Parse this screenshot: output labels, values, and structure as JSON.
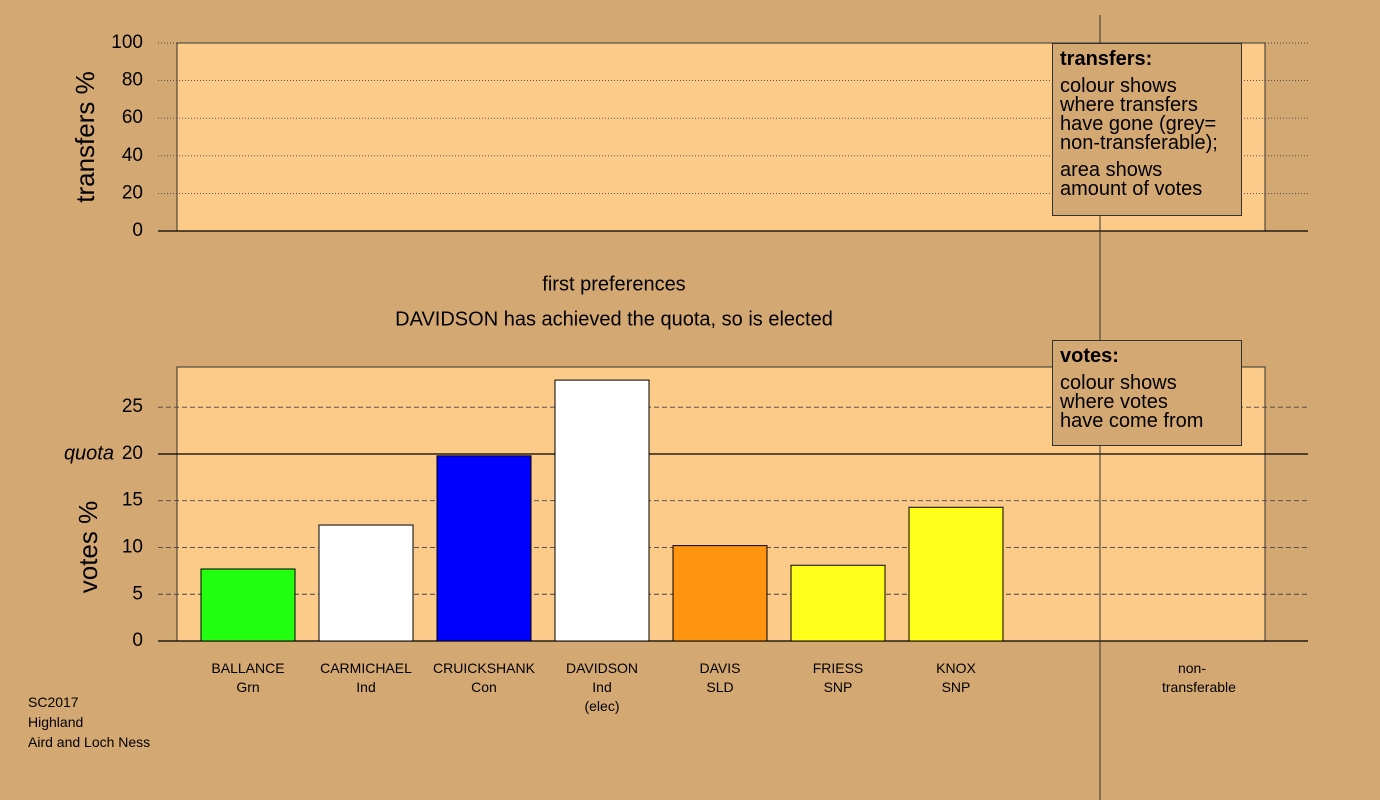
{
  "chart_data": [
    {
      "type": "empty",
      "ylabel": "transfers %",
      "ylim": [
        0,
        100
      ],
      "yticks": [
        0,
        20,
        40,
        60,
        80,
        100
      ],
      "legend": {
        "title": "transfers:",
        "paragraphs": [
          [
            "colour shows",
            "where transfers",
            "have gone (grey=",
            "non-transferable);"
          ],
          [
            "area shows",
            "amount of votes"
          ]
        ]
      }
    },
    {
      "type": "bar",
      "title": "first preferences",
      "subtitle": "DAVIDSON has achieved the quota, so is elected",
      "ylabel": "votes %",
      "ylim": [
        0,
        29.3
      ],
      "yticks": [
        0,
        5,
        10,
        15,
        20,
        25
      ],
      "quota": 20,
      "quota_label": "quota",
      "categories": [
        "BALLANCE",
        "CARMICHAEL",
        "CRUICKSHANK",
        "DAVIDSON",
        "DAVIS",
        "FRIESS",
        "KNOX",
        null,
        "non-transferable"
      ],
      "parties": [
        "Grn",
        "Ind",
        "Con",
        "Ind",
        "SLD",
        "SNP",
        "SNP",
        null,
        null
      ],
      "notes": [
        null,
        null,
        null,
        "(elec)",
        null,
        null,
        null,
        null,
        null
      ],
      "values": [
        7.7,
        12.4,
        19.8,
        27.9,
        10.2,
        8.1,
        14.3,
        null,
        null
      ],
      "colors": [
        "#22ff11",
        "#ffffff",
        "#0000ff",
        "#ffffff",
        "#ff9410",
        "#ffff1a",
        "#ffff1a",
        null,
        null
      ],
      "legend": {
        "title": "votes:",
        "paragraphs": [
          [
            "colour shows",
            "where votes",
            "have come from"
          ]
        ]
      }
    }
  ],
  "footer": [
    "SC2017",
    "Highland",
    "Aird and Loch Ness"
  ]
}
